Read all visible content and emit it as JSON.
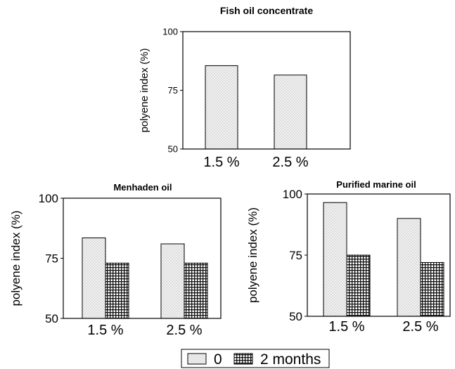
{
  "chart_data": [
    {
      "type": "bar",
      "title": "Fish oil concentrate",
      "ylabel": "polyene index (%)",
      "categories": [
        "1.5 %",
        "2.5 %"
      ],
      "ylim": [
        50,
        100
      ],
      "yticks": [
        "50",
        "75",
        "100"
      ],
      "series": [
        {
          "name": "0",
          "values": [
            85.5,
            81.5
          ]
        }
      ]
    },
    {
      "type": "bar",
      "title": "Menhaden oil",
      "ylabel": "polyene index (%)",
      "categories": [
        "1.5 %",
        "2.5 %"
      ],
      "ylim": [
        50,
        100
      ],
      "yticks": [
        "50",
        "75",
        "100"
      ],
      "series": [
        {
          "name": "0",
          "values": [
            83.5,
            81
          ]
        },
        {
          "name": "2 months",
          "values": [
            73,
            73
          ]
        }
      ]
    },
    {
      "type": "bar",
      "title": "Purified marine oil",
      "ylabel": "polyene index (%)",
      "categories": [
        "1.5 %",
        "2.5 %"
      ],
      "ylim": [
        50,
        100
      ],
      "yticks": [
        "50",
        "75",
        "100"
      ],
      "series": [
        {
          "name": "0",
          "values": [
            96.5,
            90
          ]
        },
        {
          "name": "2 months",
          "values": [
            75,
            72
          ]
        }
      ]
    }
  ],
  "legend": {
    "items": [
      {
        "label": "0",
        "pattern": "dots"
      },
      {
        "label": "2 months",
        "pattern": "grid"
      }
    ]
  }
}
